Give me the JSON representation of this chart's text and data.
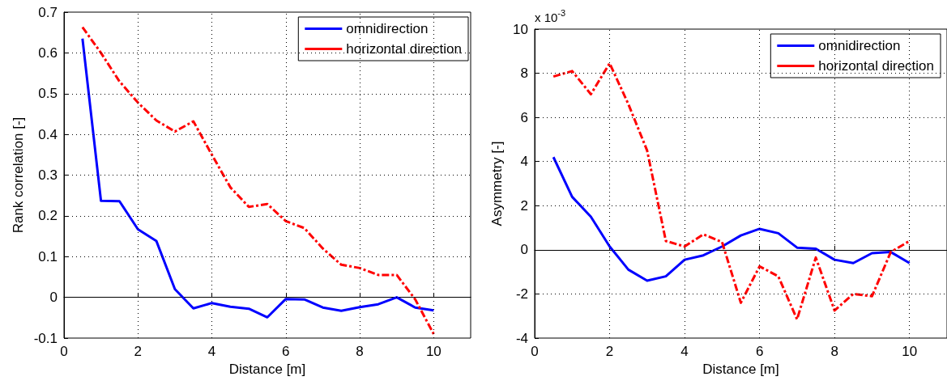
{
  "chart_data": [
    {
      "type": "line",
      "xlabel": "Distance [m]",
      "ylabel": "Rank correlation [-]",
      "x": [
        0.5,
        1,
        1.5,
        2,
        2.5,
        3,
        3.5,
        4,
        4.5,
        5,
        5.5,
        6,
        6.5,
        7,
        7.5,
        8,
        8.5,
        9,
        9.5,
        10
      ],
      "xlim": [
        0,
        11
      ],
      "xticks": [
        0,
        2,
        4,
        6,
        8,
        10
      ],
      "ylim": [
        -0.1,
        0.7
      ],
      "yticks": [
        -0.1,
        0,
        0.1,
        0.2,
        0.3,
        0.4,
        0.5,
        0.6,
        0.7
      ],
      "grid": true,
      "legend": "top right",
      "series": [
        {
          "name": "omnidirection",
          "color": "#0000ff",
          "line_style": "solid",
          "values": [
            0.635,
            0.237,
            0.236,
            0.167,
            0.138,
            0.02,
            -0.027,
            -0.014,
            -0.023,
            -0.028,
            -0.049,
            -0.004,
            -0.005,
            -0.025,
            -0.033,
            -0.024,
            -0.017,
            0,
            -0.025,
            -0.032
          ]
        },
        {
          "name": "horizontal direction",
          "color": "#ff0000",
          "line_style": "dashed",
          "values": [
            0.663,
            0.6,
            0.53,
            0.478,
            0.434,
            0.407,
            0.432,
            0.35,
            0.27,
            0.222,
            0.229,
            0.187,
            0.17,
            0.12,
            0.08,
            0.072,
            0.055,
            0.055,
            -0.005,
            -0.09
          ]
        }
      ]
    },
    {
      "type": "line",
      "xlabel": "Distance [m]",
      "ylabel": "Asymmetry [-]",
      "annotations": [
        "x 10$^{-3}$"
      ],
      "x": [
        0.5,
        1,
        1.5,
        2,
        2.5,
        3,
        3.5,
        4,
        4.5,
        5,
        5.5,
        6,
        6.5,
        7,
        7.5,
        8,
        8.5,
        9,
        9.5,
        10
      ],
      "xlim": [
        0,
        11
      ],
      "xticks": [
        0,
        2,
        4,
        6,
        8,
        10
      ],
      "ylim": [
        -4,
        10
      ],
      "yticks": [
        -4,
        -2,
        0,
        2,
        4,
        6,
        8,
        10
      ],
      "grid": true,
      "legend": "top right",
      "series": [
        {
          "name": "omnidirection",
          "color": "#0000ff",
          "line_style": "solid",
          "values": [
            4.2,
            2.4,
            1.5,
            0.15,
            -0.9,
            -1.4,
            -1.2,
            -0.45,
            -0.25,
            0.15,
            0.65,
            0.95,
            0.75,
            0.1,
            0.05,
            -0.45,
            -0.6,
            -0.15,
            -0.1,
            -0.6
          ]
        },
        {
          "name": "horizontal direction",
          "color": "#ff0000",
          "line_style": "dashed",
          "values": [
            7.85,
            8.1,
            7.05,
            8.45,
            6.6,
            4.5,
            0.4,
            0.15,
            0.7,
            0.35,
            -2.4,
            -0.75,
            -1.2,
            -3.15,
            -0.35,
            -2.75,
            -2.0,
            -2.1,
            -0.1,
            0.4
          ]
        }
      ]
    }
  ]
}
